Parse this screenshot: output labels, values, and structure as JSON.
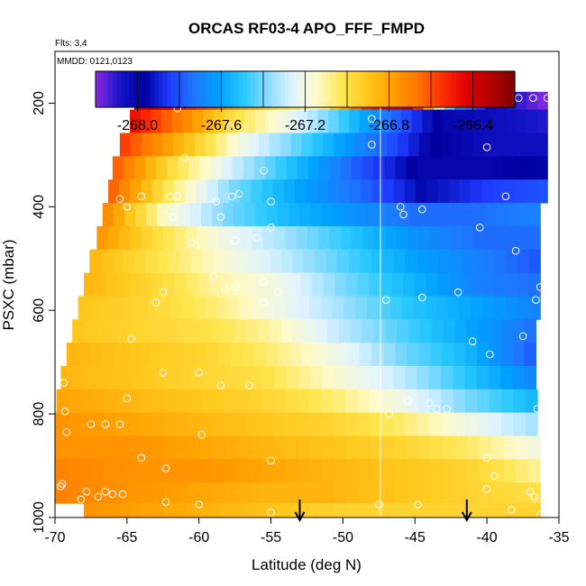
{
  "chart_data": {
    "type": "heatmap",
    "title": "ORCAS RF03-4 APO_FFF_FMPD",
    "note_flights": "Flts: 3,4",
    "note_dates": "MMDD: 0121,0123",
    "xlabel": "Latitude (deg N)",
    "ylabel": "PSXC (mbar)",
    "xlim": [
      -70,
      -35
    ],
    "ylim": [
      1000,
      100
    ],
    "y_inverted": true,
    "x_ticks": [
      -70,
      -65,
      -60,
      -55,
      -50,
      -45,
      -40,
      -35
    ],
    "x_tick_labels": [
      "-70",
      "-65",
      "-60",
      "-55",
      "-50",
      "-45",
      "-40",
      "-35"
    ],
    "y_ticks": [
      200,
      400,
      600,
      800,
      1000
    ],
    "y_tick_labels": [
      "200",
      "400",
      "600",
      "800",
      "1000"
    ],
    "colorbar": {
      "min": -268.2,
      "max": -266.2,
      "ticks": [
        -268.0,
        -267.6,
        -267.2,
        -266.8,
        -266.4
      ],
      "tick_labels": [
        "-268.0",
        "-267.6",
        "-267.2",
        "-266.8",
        "-266.4"
      ],
      "colors": [
        "#8B2BE2",
        "#1414C8",
        "#0000A0",
        "#1E3CFF",
        "#1E78FF",
        "#00A0FF",
        "#28C8FF",
        "#8CDCFF",
        "#E0F4FF",
        "#FFFAC8",
        "#FFE650",
        "#FFC81E",
        "#FFA000",
        "#FF7800",
        "#FF3200",
        "#E10000",
        "#B40000",
        "#7D0000"
      ]
    },
    "vertical_line_x": -47.4,
    "arrows_x": [
      -53,
      -41.4
    ],
    "rows": [
      {
        "p": 190,
        "lat_start": -64.5,
        "lat_end": -35.8,
        "values": [
          -266.3,
          -266.45,
          -266.65,
          -266.9,
          -267.15,
          -266.55,
          -266.3,
          -267.6,
          -268.05,
          -268.2
        ]
      },
      {
        "p": 235,
        "lat_start": -64.8,
        "lat_end": -35.8,
        "values": [
          -266.45,
          -266.7,
          -267.0,
          -267.2,
          -267.45,
          -267.75,
          -268.0,
          -268.05,
          -268.1
        ]
      },
      {
        "p": 280,
        "lat_start": -65.5,
        "lat_end": -35.8,
        "values": [
          -266.55,
          -266.85,
          -267.2,
          -267.45,
          -267.7,
          -267.95,
          -268.05,
          -268.05
        ]
      },
      {
        "p": 325,
        "lat_start": -66.0,
        "lat_end": -35.8,
        "values": [
          -266.6,
          -267.0,
          -267.3,
          -267.55,
          -267.8,
          -268.0,
          -268.0,
          -267.95
        ]
      },
      {
        "p": 370,
        "lat_start": -66.3,
        "lat_end": -35.8,
        "values": [
          -266.6,
          -267.05,
          -267.4,
          -267.6,
          -267.75,
          -267.95,
          -267.85,
          -267.8
        ]
      },
      {
        "p": 415,
        "lat_start": -66.7,
        "lat_end": -36.3,
        "values": [
          -266.7,
          -267.15,
          -267.4,
          -267.55,
          -267.65,
          -267.75,
          -267.75,
          -267.7
        ]
      },
      {
        "p": 460,
        "lat_start": -67.1,
        "lat_end": -36.3,
        "values": [
          -266.75,
          -267.0,
          -267.2,
          -267.35,
          -267.5,
          -267.65,
          -267.75,
          -267.75
        ]
      },
      {
        "p": 505,
        "lat_start": -67.6,
        "lat_end": -36.3,
        "values": [
          -266.85,
          -267.0,
          -267.15,
          -267.3,
          -267.45,
          -267.6,
          -267.7,
          -267.8
        ]
      },
      {
        "p": 550,
        "lat_start": -68.0,
        "lat_end": -36.3,
        "values": [
          -266.85,
          -266.95,
          -267.1,
          -267.2,
          -267.4,
          -267.55,
          -267.7,
          -267.75
        ]
      },
      {
        "p": 595,
        "lat_start": -68.4,
        "lat_end": -36.3,
        "values": [
          -266.9,
          -266.95,
          -267.05,
          -267.2,
          -267.35,
          -267.5,
          -267.6,
          -267.7
        ]
      },
      {
        "p": 640,
        "lat_start": -68.8,
        "lat_end": -36.6,
        "values": [
          -266.9,
          -266.95,
          -267.0,
          -267.1,
          -267.3,
          -267.45,
          -267.6,
          -267.75
        ]
      },
      {
        "p": 685,
        "lat_start": -69.2,
        "lat_end": -36.6,
        "values": [
          -266.85,
          -266.9,
          -266.95,
          -267.05,
          -267.2,
          -267.4,
          -267.55,
          -267.8
        ]
      },
      {
        "p": 730,
        "lat_start": -69.6,
        "lat_end": -36.6,
        "values": [
          -266.85,
          -266.9,
          -266.95,
          -267.0,
          -267.15,
          -267.3,
          -267.5,
          -267.7
        ]
      },
      {
        "p": 775,
        "lat_start": -69.9,
        "lat_end": -36.5,
        "values": [
          -266.8,
          -266.85,
          -266.9,
          -266.95,
          -267.05,
          -267.2,
          -267.4,
          -267.55
        ]
      },
      {
        "p": 820,
        "lat_start": -70.0,
        "lat_end": -36.5,
        "values": [
          -266.75,
          -266.8,
          -266.85,
          -266.9,
          -266.95,
          -267.05,
          -267.2,
          -267.35
        ]
      },
      {
        "p": 865,
        "lat_start": -70.0,
        "lat_end": -36.3,
        "values": [
          -266.75,
          -266.75,
          -266.8,
          -266.85,
          -266.9,
          -266.95,
          -267.05,
          -267.2
        ]
      },
      {
        "p": 910,
        "lat_start": -70.0,
        "lat_end": -36.3,
        "values": [
          -266.7,
          -266.75,
          -266.75,
          -266.8,
          -266.85,
          -266.9,
          -266.95,
          -267.1
        ]
      },
      {
        "p": 955,
        "lat_start": -70.0,
        "lat_end": -36.3,
        "values": [
          -266.7,
          -266.75,
          -266.8,
          -266.85,
          -266.85,
          -266.9,
          -266.95,
          -267.0
        ]
      },
      {
        "p": 990,
        "lat_start": -68.0,
        "lat_end": -36.3,
        "values": [
          -266.75,
          -266.8,
          -266.85,
          -266.9,
          -266.95,
          -266.95,
          -266.95,
          -266.95
        ]
      }
    ],
    "points": [
      [
        -64.5,
        190
      ],
      [
        -63.0,
        190
      ],
      [
        -62.0,
        190
      ],
      [
        -60.5,
        190
      ],
      [
        -59.5,
        190
      ],
      [
        -58.5,
        190
      ],
      [
        -57.5,
        190
      ],
      [
        -55.5,
        190
      ],
      [
        -54.5,
        190
      ],
      [
        -53.5,
        190
      ],
      [
        -51.8,
        190
      ],
      [
        -51.3,
        190
      ],
      [
        -50.8,
        190
      ],
      [
        -50.0,
        190
      ],
      [
        -49.5,
        190
      ],
      [
        -49.0,
        190
      ],
      [
        -38.8,
        190
      ],
      [
        -37.8,
        190
      ],
      [
        -36.8,
        190
      ],
      [
        -35.8,
        190
      ],
      [
        -39.2,
        195
      ],
      [
        -61.5,
        210
      ],
      [
        -48.0,
        230
      ],
      [
        -57.8,
        245
      ],
      [
        -57.0,
        250
      ],
      [
        -48.0,
        280
      ],
      [
        -40.0,
        285
      ],
      [
        -61.0,
        305
      ],
      [
        -55.5,
        330
      ],
      [
        -57.2,
        375
      ],
      [
        -57.7,
        380
      ],
      [
        -61.5,
        380
      ],
      [
        -62.0,
        380
      ],
      [
        -64.0,
        380
      ],
      [
        -65.5,
        385
      ],
      [
        -58.8,
        390
      ],
      [
        -55.0,
        390
      ],
      [
        -46.0,
        400
      ],
      [
        -35.3,
        400
      ],
      [
        -65.0,
        400
      ],
      [
        -45.8,
        415
      ],
      [
        -44.5,
        405
      ],
      [
        -38.7,
        380
      ],
      [
        -58.5,
        420
      ],
      [
        -61.8,
        420
      ],
      [
        -40.5,
        440
      ],
      [
        -55.0,
        440
      ],
      [
        -56.0,
        460
      ],
      [
        -57.5,
        465
      ],
      [
        -60.5,
        470
      ],
      [
        -38.0,
        485
      ],
      [
        -59.0,
        535
      ],
      [
        -55.5,
        545
      ],
      [
        -57.5,
        555
      ],
      [
        -58.2,
        560
      ],
      [
        -62.5,
        565
      ],
      [
        -63.0,
        585
      ],
      [
        -54.5,
        565
      ],
      [
        -42.0,
        565
      ],
      [
        -44.5,
        575
      ],
      [
        -47.0,
        580
      ],
      [
        -36.3,
        555
      ],
      [
        -36.6,
        580
      ],
      [
        -55.5,
        585
      ],
      [
        -64.7,
        655
      ],
      [
        -41.0,
        660
      ],
      [
        -39.8,
        685
      ],
      [
        -37.5,
        650
      ],
      [
        -69.4,
        740
      ],
      [
        -62.5,
        720
      ],
      [
        -60.0,
        720
      ],
      [
        -58.5,
        745
      ],
      [
        -56.5,
        745
      ],
      [
        -65.0,
        770
      ],
      [
        -45.5,
        775
      ],
      [
        -44.0,
        780
      ],
      [
        -42.8,
        790
      ],
      [
        -43.5,
        790
      ],
      [
        -46.8,
        800
      ],
      [
        -36.5,
        790
      ],
      [
        -69.3,
        795
      ],
      [
        -67.5,
        820
      ],
      [
        -66.5,
        820
      ],
      [
        -65.5,
        820
      ],
      [
        -69.2,
        835
      ],
      [
        -59.8,
        840
      ],
      [
        -64.0,
        885
      ],
      [
        -62.3,
        905
      ],
      [
        -55.0,
        890
      ],
      [
        -40.0,
        885
      ],
      [
        -39.5,
        920
      ],
      [
        -69.5,
        935
      ],
      [
        -69.6,
        940
      ],
      [
        -67.8,
        950
      ],
      [
        -66.5,
        950
      ],
      [
        -66.0,
        955
      ],
      [
        -65.3,
        955
      ],
      [
        -67.0,
        960
      ],
      [
        -68.2,
        965
      ],
      [
        -62.3,
        970
      ],
      [
        -60.0,
        975
      ],
      [
        -55.0,
        990
      ],
      [
        -47.5,
        975
      ],
      [
        -44.8,
        975
      ],
      [
        -40.0,
        945
      ],
      [
        -36.7,
        960
      ],
      [
        -38.3,
        985
      ],
      [
        -36.3,
        995
      ],
      [
        -41.5,
        1000
      ],
      [
        -37.0,
        950
      ]
    ]
  }
}
